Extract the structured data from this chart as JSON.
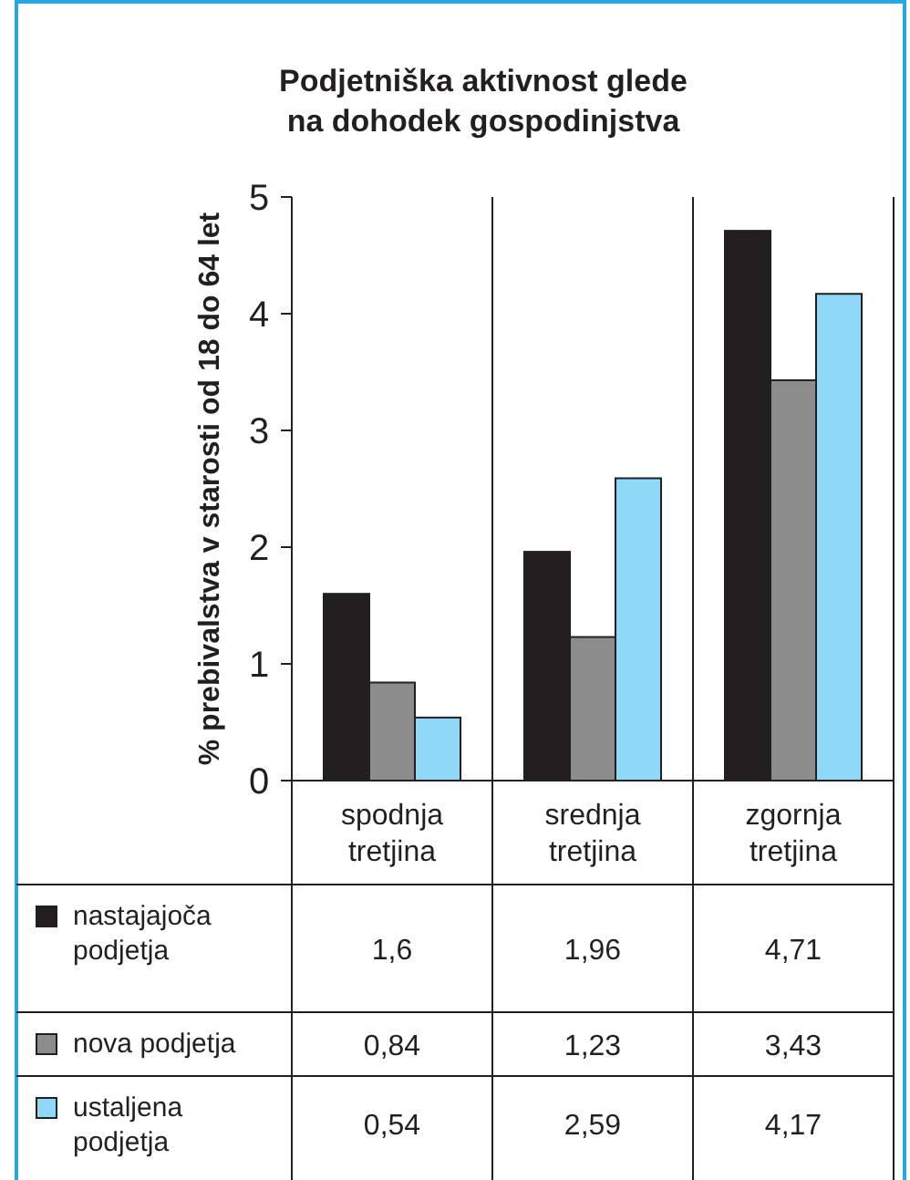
{
  "chart_data": {
    "type": "bar",
    "title": "Podjetniška aktivnost glede\nna dohodek gospodinjstva",
    "ylabel": "% prebivalstva v starosti od 18 do 64 let",
    "categories": [
      "spodnja\ntretjina",
      "srednja\ntretjina",
      "zgornja\ntretjina"
    ],
    "series": [
      {
        "name": "nastajajoča\npodjetja",
        "color": "#231f20",
        "values": [
          1.6,
          1.96,
          4.71
        ],
        "value_labels": [
          "1,6",
          "1,96",
          "4,71"
        ]
      },
      {
        "name": "nova podjetja",
        "color": "#8c8c8c",
        "values": [
          0.84,
          1.23,
          3.43
        ],
        "value_labels": [
          "0,84",
          "1,23",
          "3,43"
        ]
      },
      {
        "name": "ustaljena\npodjetja",
        "color": "#8fd8f8",
        "values": [
          0.54,
          2.59,
          4.17
        ],
        "value_labels": [
          "0,54",
          "2,59",
          "4,17"
        ]
      }
    ],
    "ylim": [
      0,
      5
    ],
    "yticks": [
      0,
      1,
      2,
      3,
      4,
      5
    ],
    "legend": "bottom"
  }
}
